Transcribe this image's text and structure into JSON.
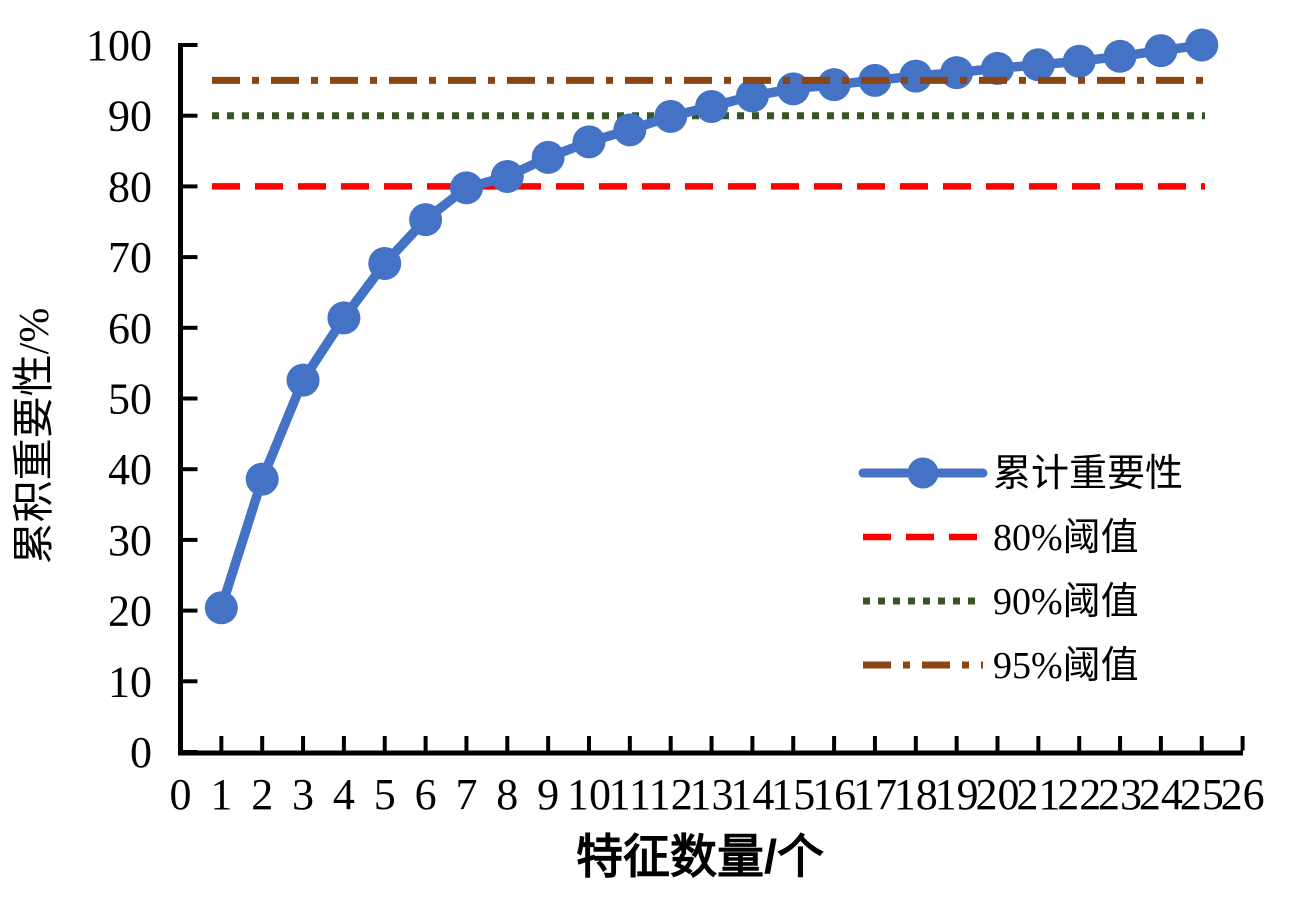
{
  "chart_data": {
    "type": "line",
    "title": "",
    "xlabel": "特征数量/个",
    "ylabel": "累积重要性/%",
    "xlim": [
      0,
      26
    ],
    "ylim": [
      0,
      100
    ],
    "x_ticks": [
      0,
      1,
      2,
      3,
      4,
      5,
      6,
      7,
      8,
      9,
      10,
      11,
      12,
      13,
      14,
      15,
      16,
      17,
      18,
      19,
      20,
      21,
      22,
      23,
      24,
      25,
      26
    ],
    "y_ticks": [
      0,
      10,
      20,
      30,
      40,
      50,
      60,
      70,
      80,
      90,
      100
    ],
    "grid": false,
    "background_color": "#FFFFFF",
    "axis_color": "#000000",
    "series": [
      {
        "name": "累计重要性",
        "color": "#4472C4",
        "marker": "circle",
        "x": [
          1,
          2,
          3,
          4,
          5,
          6,
          7,
          8,
          9,
          10,
          11,
          12,
          13,
          14,
          15,
          16,
          17,
          18,
          19,
          20,
          21,
          22,
          23,
          24,
          25
        ],
        "values": [
          20.4,
          38.6,
          52.6,
          61.4,
          69.1,
          75.3,
          79.8,
          81.4,
          84.1,
          86.3,
          88.0,
          89.9,
          91.3,
          92.8,
          93.8,
          94.4,
          95.0,
          95.6,
          96.1,
          96.7,
          97.2,
          97.7,
          98.4,
          99.2,
          100.0
        ]
      }
    ],
    "threshold_lines": [
      {
        "name": "80%阈值",
        "value": 80,
        "color": "#FF0000",
        "style": "dashed"
      },
      {
        "name": "90%阈值",
        "value": 90,
        "color": "#375623",
        "style": "dotted"
      },
      {
        "name": "95%阈值",
        "value": 95,
        "color": "#8B4513",
        "style": "dash-dot"
      }
    ],
    "legend": {
      "position": "right-middle",
      "entries": [
        "累计重要性",
        "80%阈值",
        "90%阈值",
        "95%阈值"
      ]
    }
  }
}
